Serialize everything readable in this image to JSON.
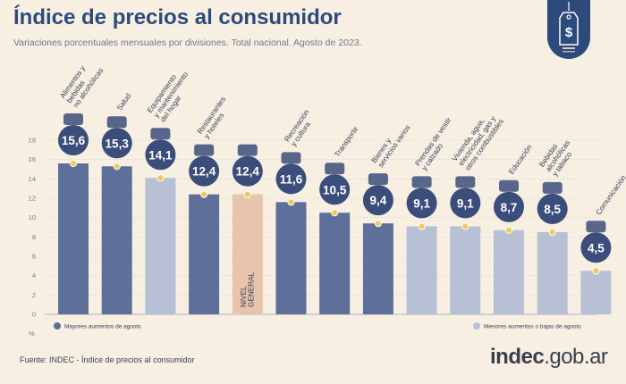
{
  "header": {
    "title": "Índice de precios al consumidor",
    "subtitle": "Variaciones porcentuales mensuales por divisiones. Total nacional. Agosto de 2023."
  },
  "footer": {
    "source": "Fuente: INDEC - Índice de precios al consumidor",
    "logo_main": "indec",
    "logo_suffix": ".gob.ar"
  },
  "colors": {
    "high": "#5e6f99",
    "general": "#e7c4ab",
    "low": "#b8c0d6",
    "circle": "#3b4d7a",
    "dot": "#f0c85a",
    "general_value": "#f0c85a",
    "grid": "#d9d2c4"
  },
  "chart_data": {
    "type": "bar",
    "title": "Índice de precios al consumidor",
    "ylabel": "%",
    "ylim": [
      0,
      18
    ],
    "yticks": [
      0,
      2,
      4,
      6,
      8,
      10,
      12,
      14,
      16,
      18
    ],
    "grid": true,
    "legend_position": "bottom",
    "categories": [
      "Alimentos y bebidas no alcohólicas",
      "Salud",
      "Equipamiento y mantenimiento del hogar",
      "Restaurantes y hoteles",
      "Nivel general",
      "Recreación y cultura",
      "Transporte",
      "Bienes y servicios varios",
      "Prendas de vestir y calzado",
      "Vivienda, agua, electricidad, gas y otros combustibles",
      "Educación",
      "Bebidas alcohólicas y tabaco",
      "Comunicación"
    ],
    "labels": [
      [
        "Alimentos y",
        "bebidas",
        "no alcohólicas"
      ],
      [
        "Salud"
      ],
      [
        "Equipamiento",
        "y mantenimiento",
        "del hogar"
      ],
      [
        "Restaurantes",
        "y hoteles"
      ],
      [
        "NIVEL",
        "GENERAL"
      ],
      [
        "Recreación",
        "y cultura"
      ],
      [
        "Transporte"
      ],
      [
        "Bienes y",
        "servicios varios"
      ],
      [
        "Prendas de vestir",
        "y calzado"
      ],
      [
        "Vivienda, agua,",
        "electricidad, gas y",
        "otros combustibles"
      ],
      [
        "Educación"
      ],
      [
        "Bebidas",
        "alcohólicas",
        "y tabaco"
      ],
      [
        "Comunicación"
      ]
    ],
    "values": [
      15.6,
      15.3,
      14.1,
      12.4,
      12.4,
      11.6,
      10.5,
      9.4,
      9.1,
      9.1,
      8.7,
      8.5,
      4.5
    ],
    "value_labels": [
      "15,6",
      "15,3",
      "14,1",
      "12,4",
      "12,4",
      "11,6",
      "10,5",
      "9,4",
      "9,1",
      "9,1",
      "8,7",
      "8,5",
      "4,5"
    ],
    "groups": [
      "high",
      "high",
      "low",
      "high",
      "general",
      "high",
      "high",
      "high",
      "low",
      "low",
      "low",
      "low",
      "low"
    ],
    "icons": [
      "food-icon",
      "health-cross-icon",
      "household-icon",
      "restaurant-icon",
      "general-basket-icon",
      "recreation-icon",
      "transport-icon",
      "comb-icon",
      "clothing-icon",
      "housing-tools-icon",
      "education-icon",
      "alcohol-tobacco-icon",
      "smartphone-icon"
    ],
    "legend": [
      {
        "key": "high",
        "label": "Mayores aumentos de agosto"
      },
      {
        "key": "low",
        "label": "Menores aumentos o bajas de agosto"
      }
    ]
  }
}
